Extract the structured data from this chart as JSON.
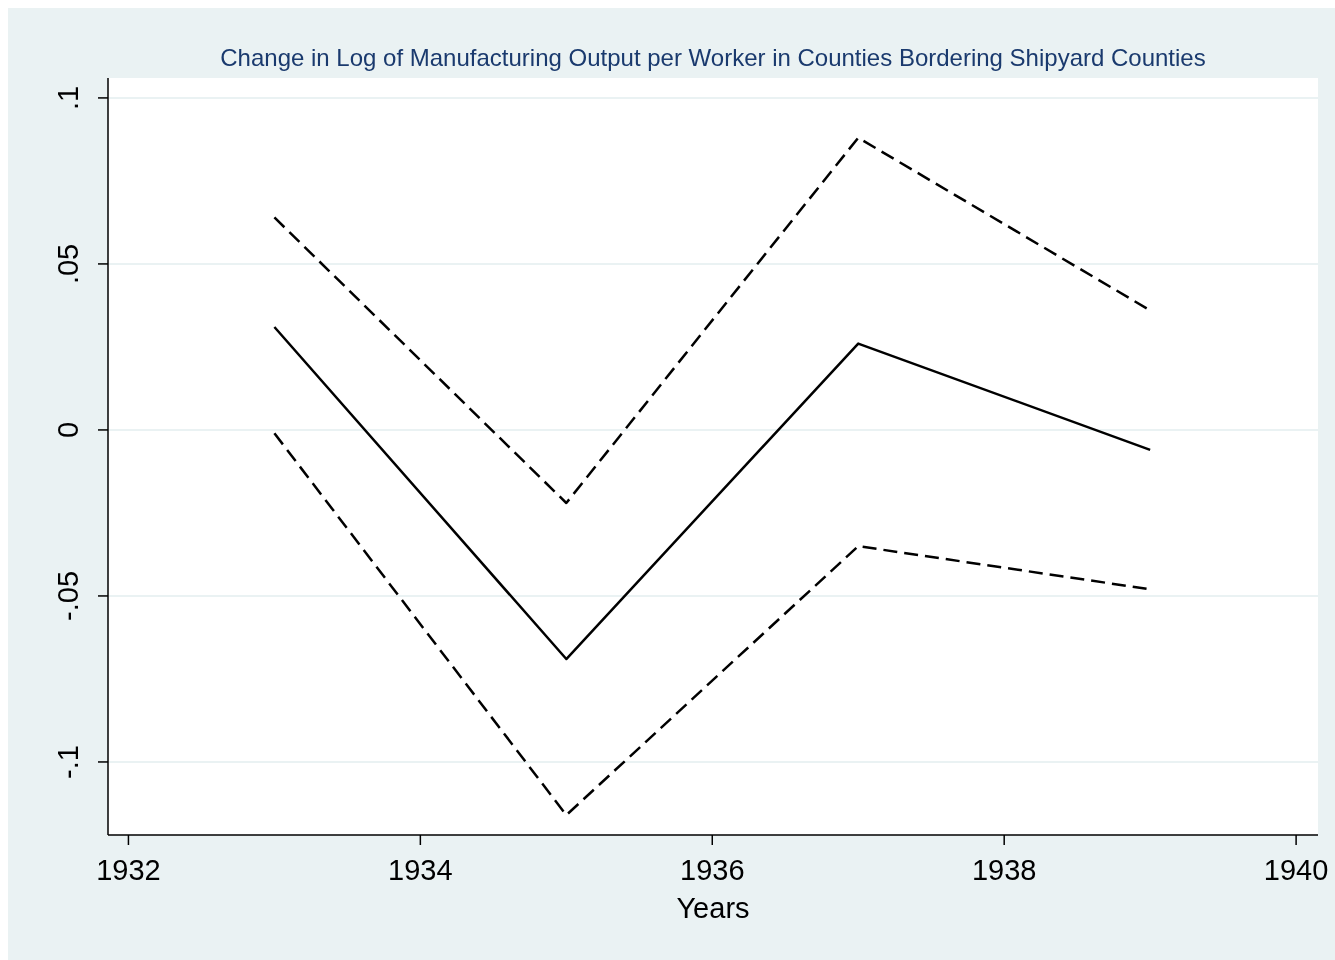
{
  "chart_data": {
    "type": "line",
    "title": "Change in Log of Manufacturing Output per Worker in Counties Bordering Shipyard Counties",
    "xlabel": "Years",
    "x": [
      1933,
      1935,
      1937,
      1939
    ],
    "series": [
      {
        "color": "#000000",
        "line_style": "solid",
        "values": [
          0.031,
          -0.069,
          0.026,
          -0.006
        ]
      },
      {
        "color": "#000000",
        "line_style": "dashed",
        "values": [
          0.064,
          -0.022,
          0.088,
          0.036
        ]
      },
      {
        "color": "#000000",
        "line_style": "dashed",
        "values": [
          -0.001,
          -0.116,
          -0.035,
          -0.048
        ]
      }
    ],
    "xlim": [
      1931.86,
      1940.15
    ],
    "xticks": [
      1932,
      1934,
      1936,
      1938,
      1940
    ],
    "ylim": [
      -0.122,
      0.106
    ],
    "yticks": [
      {
        "value": -0.1,
        "label": "-.1"
      },
      {
        "value": -0.05,
        "label": "-.05"
      },
      {
        "value": 0,
        "label": "0"
      },
      {
        "value": 0.05,
        "label": ".05"
      },
      {
        "value": 0.1,
        "label": ".1"
      }
    ],
    "grid": "y",
    "marker": "none"
  }
}
